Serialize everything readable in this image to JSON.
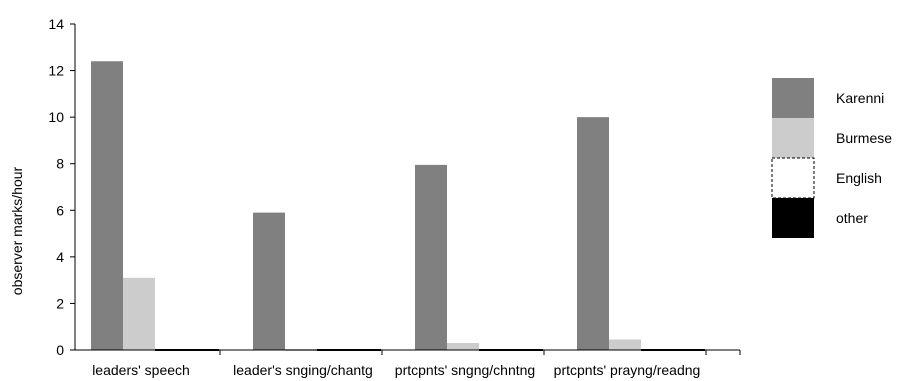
{
  "chart_data": {
    "type": "bar",
    "title": "",
    "xlabel": "",
    "ylabel": "observer marks/hour",
    "ylim": [
      0,
      14
    ],
    "yticks": [
      0,
      2,
      4,
      6,
      8,
      10,
      12,
      14
    ],
    "grid": false,
    "legend_position": "right",
    "categories": [
      "leaders' speech",
      "leader's snging/chantg",
      "prtcpnts' sngng/chntng",
      "prtcpnts' prayng/readng"
    ],
    "series": [
      {
        "name": "Karenni",
        "color": "#808080",
        "values": [
          12.4,
          5.9,
          7.95,
          10.0
        ]
      },
      {
        "name": "Burmese",
        "color": "#cccccc",
        "values": [
          3.1,
          0.0,
          0.3,
          0.45
        ]
      },
      {
        "name": "English",
        "color": "#ffffff",
        "values": [
          0,
          0,
          0,
          0
        ]
      },
      {
        "name": "other",
        "color": "#000000",
        "values": [
          0,
          0,
          0,
          0
        ]
      }
    ]
  }
}
